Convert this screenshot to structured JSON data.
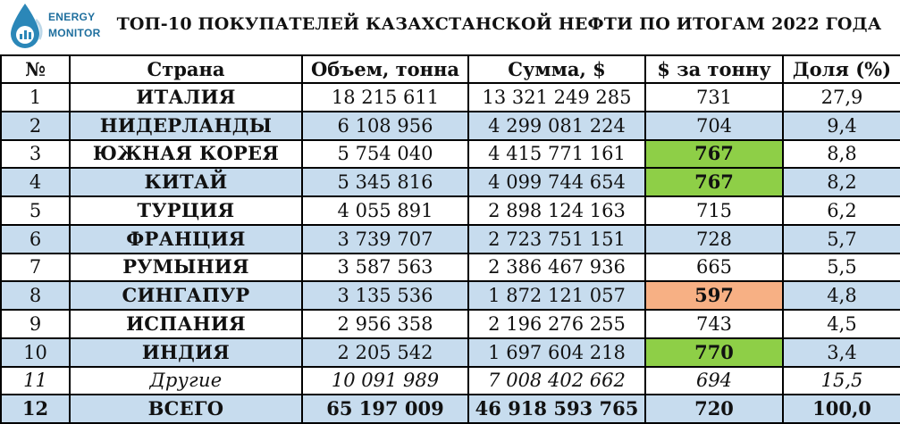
{
  "brand": {
    "line1": "ENERGY",
    "line2": "MONITOR"
  },
  "title": "ТОП-10 ПОКУПАТЕЛЕЙ КАЗАХСТАНСКОЙ НЕФТИ ПО ИТОГАМ 2022 ГОДА",
  "colors": {
    "row_alt": "#c7dcee",
    "highlight_high": "#8ecf47",
    "highlight_low": "#f7b084"
  },
  "table": {
    "headers": [
      "№",
      "Страна",
      "Объем, тонна",
      "Сумма, $",
      "$ за тонну",
      "Доля (%)"
    ],
    "rows": [
      [
        "1",
        "ИТАЛИЯ",
        "18 215 611",
        "13 321 249 285",
        "731",
        "27,9"
      ],
      [
        "2",
        "НИДЕРЛАНДЫ",
        "6 108 956",
        "4 299 081 224",
        "704",
        "9,4"
      ],
      [
        "3",
        "ЮЖНАЯ КОРЕЯ",
        "5 754 040",
        "4 415 771 161",
        "767",
        "8,8"
      ],
      [
        "4",
        "КИТАЙ",
        "5 345 816",
        "4 099 744 654",
        "767",
        "8,2"
      ],
      [
        "5",
        "ТУРЦИЯ",
        "4 055 891",
        "2 898 124 163",
        "715",
        "6,2"
      ],
      [
        "6",
        "ФРАНЦИЯ",
        "3 739 707",
        "2 723 751 151",
        "728",
        "5,7"
      ],
      [
        "7",
        "РУМЫНИЯ",
        "3 587 563",
        "2 386 467 936",
        "665",
        "5,5"
      ],
      [
        "8",
        "СИНГАПУР",
        "3 135 536",
        "1 872 121 057",
        "597",
        "4,8"
      ],
      [
        "9",
        "ИСПАНИЯ",
        "2 956 358",
        "2 196 276 255",
        "743",
        "4,5"
      ],
      [
        "10",
        "ИНДИЯ",
        "2 205 542",
        "1 697 604 218",
        "770",
        "3,4"
      ],
      [
        "11",
        "Другие",
        "10 091 989",
        "7 008 402 662",
        "694",
        "15,5"
      ],
      [
        "12",
        "ВСЕГО",
        "65 197 009",
        "46 918 593 765",
        "720",
        "100,0"
      ]
    ]
  }
}
